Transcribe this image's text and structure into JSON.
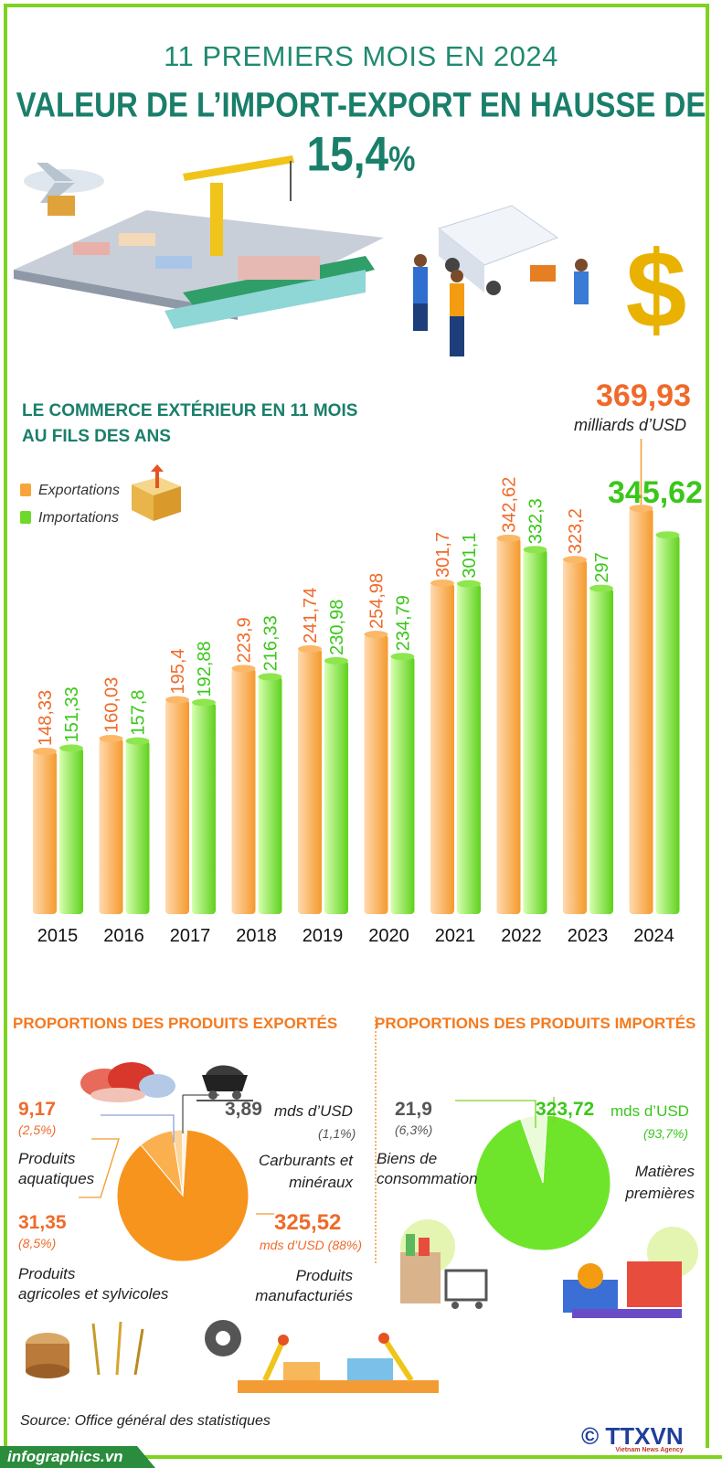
{
  "header": {
    "line1": "11 PREMIERS MOIS EN 2024",
    "line2": "VALEUR DE L’IMPORT-EXPORT EN HAUSSE DE",
    "highlight_value": "15,4",
    "highlight_unit": "%"
  },
  "section1": {
    "title_line1": "LE COMMERCE EXTÉRIEUR EN 11 MOIS",
    "title_line2": "AU FILS DES ANS",
    "legend_export": "Exportations",
    "legend_import": "Importations",
    "highlight_export": "369,93",
    "highlight_unit": "milliards d’USD",
    "highlight_import": "345,62"
  },
  "chart_data": {
    "type": "bar",
    "title": "LE COMMERCE EXTÉRIEUR EN 11 MOIS AU FILS DES ANS",
    "unit": "milliards d’USD",
    "categories": [
      "2015",
      "2016",
      "2017",
      "2018",
      "2019",
      "2020",
      "2021",
      "2022",
      "2023",
      "2024"
    ],
    "series": [
      {
        "name": "Exportations",
        "color": "#f7a43a",
        "values": [
          148.33,
          160.03,
          195.4,
          223.9,
          241.74,
          254.98,
          301.7,
          342.62,
          323.2,
          369.93
        ],
        "labels": [
          "148,33",
          "160,03",
          "195,4",
          "223,9",
          "241,74",
          "254,98",
          "301,7",
          "342,62",
          "323,2",
          "369,93"
        ]
      },
      {
        "name": "Importations",
        "color": "#6fd92b",
        "values": [
          151.33,
          157.8,
          192.88,
          216.33,
          230.98,
          234.79,
          301.1,
          332.3,
          297,
          345.62
        ],
        "labels": [
          "151,33",
          "157,8",
          "192,88",
          "216,33",
          "230,98",
          "234,79",
          "301,1",
          "332,3",
          "297",
          "345,62"
        ]
      }
    ],
    "ylim": [
      0,
      400
    ]
  },
  "exports": {
    "title": "PROPORTIONS DES PRODUITS EXPORTÉS",
    "aquatic_value": "9,17",
    "aquatic_pct": "(2,5%)",
    "aquatic_label_1": "Produits",
    "aquatic_label_2": "aquatiques",
    "fuel_value": "3,89",
    "fuel_unit": "mds d’USD",
    "fuel_pct": "(1,1%)",
    "fuel_label_1": "Carburants et",
    "fuel_label_2": "minéraux",
    "agri_value": "31,35",
    "agri_pct": "(8,5%)",
    "agri_label_1": "Produits",
    "agri_label_2": "agricoles et sylvicoles",
    "manuf_value": "325,52",
    "manuf_unit": "mds d’USD (88%)",
    "manuf_label_1": "Produits",
    "manuf_label_2": "manufacturiés",
    "slices": [
      {
        "name": "Produits manufacturiés",
        "value": 325.52,
        "color": "#f7941d"
      },
      {
        "name": "Produits agricoles et sylvicoles",
        "value": 31.35,
        "color": "#fbb04f"
      },
      {
        "name": "Produits aquatiques",
        "value": 9.17,
        "color": "#fdd59a"
      },
      {
        "name": "Carburants et minéraux",
        "value": 3.89,
        "color": "#fff3e0"
      }
    ]
  },
  "imports": {
    "title": "PROPORTIONS DES PRODUITS IMPORTÉS",
    "consumer_value": "21,9",
    "consumer_pct": "(6,3%)",
    "consumer_label_1": "Biens de",
    "consumer_label_2": "consommation",
    "raw_value": "323,72",
    "raw_unit": "mds d’USD",
    "raw_pct": "(93,7%)",
    "raw_label_1": "Matières",
    "raw_label_2": "premières",
    "slices": [
      {
        "name": "Matières premières",
        "value": 323.72,
        "color": "#6ee52a"
      },
      {
        "name": "Biens de consommation",
        "value": 21.9,
        "color": "#e9fbd9"
      }
    ]
  },
  "footer": {
    "source": "Source: Office général des statistiques",
    "site": "infographics.vn",
    "copyright": "©",
    "agency": "TTXVN",
    "agency_sub": "Vietnam News Agency"
  }
}
